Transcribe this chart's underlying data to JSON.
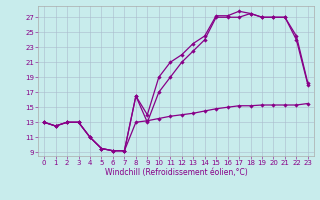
{
  "xlabel": "Windchill (Refroidissement éolien,°C)",
  "background_color": "#c8ecec",
  "line_color": "#880088",
  "grid_color": "#aabbcc",
  "xlim": [
    -0.5,
    23.5
  ],
  "ylim": [
    8.5,
    28.5
  ],
  "xticks": [
    0,
    1,
    2,
    3,
    4,
    5,
    6,
    7,
    8,
    9,
    10,
    11,
    12,
    13,
    14,
    15,
    16,
    17,
    18,
    19,
    20,
    21,
    22,
    23
  ],
  "yticks": [
    9,
    11,
    13,
    15,
    17,
    19,
    21,
    23,
    25,
    27
  ],
  "hours": [
    0,
    1,
    2,
    3,
    4,
    5,
    6,
    7,
    8,
    9,
    10,
    11,
    12,
    13,
    14,
    15,
    16,
    17,
    18,
    19,
    20,
    21,
    22,
    23
  ],
  "line_bottom": [
    13,
    12.5,
    13,
    13,
    11,
    9.5,
    9.2,
    9.2,
    13,
    13.2,
    13.5,
    13.8,
    14,
    14.2,
    14.5,
    14.8,
    15,
    15.2,
    15.2,
    15.3,
    15.3,
    15.3,
    15.3,
    15.5
  ],
  "line_mid": [
    13,
    12.5,
    13,
    13,
    11,
    9.5,
    9.2,
    9.2,
    16.5,
    13,
    17,
    19,
    21,
    22.5,
    24,
    27,
    27,
    27,
    27.5,
    27,
    27,
    27,
    24,
    18
  ],
  "line_top": [
    13,
    12.5,
    13,
    13,
    11,
    9.5,
    9.2,
    9.2,
    16.5,
    14,
    19,
    21,
    22,
    23.5,
    24.5,
    27.2,
    27.2,
    27.8,
    27.5,
    27,
    27,
    27,
    24.5,
    18.2
  ]
}
